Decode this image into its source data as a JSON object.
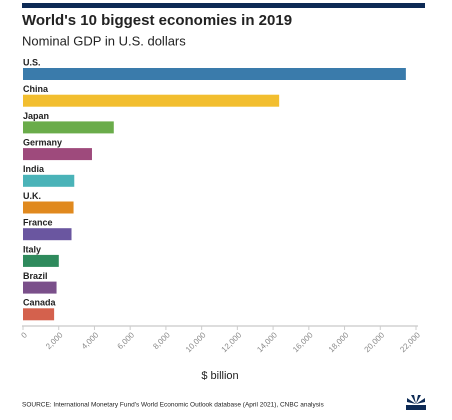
{
  "chart_data": {
    "type": "hbar",
    "title": "World's 10 biggest economies in 2019",
    "subtitle": "Nominal GDP in U.S. dollars",
    "x_label": "$ billion",
    "source": "SOURCE: International Monetary Fund's World Economic Outlook database (April 2021), CNBC analysis",
    "categories": [
      "U.S.",
      "China",
      "Japan",
      "Germany",
      "India",
      "U.K.",
      "France",
      "Italy",
      "Brazil",
      "Canada"
    ],
    "values": [
      21433,
      14340,
      5082,
      3861,
      2870,
      2830,
      2716,
      2004,
      1878,
      1742
    ],
    "colors": [
      "#3a7bab",
      "#f2be2f",
      "#6aac4a",
      "#9e4a7c",
      "#4ab3b8",
      "#e0891e",
      "#6a56a0",
      "#2e8a5c",
      "#7a4f8a",
      "#d4614d"
    ],
    "xlim": [
      0,
      22000
    ],
    "xticks": [
      0,
      {
        "value": 2000,
        "label": "2,000"
      },
      {
        "value": 4000,
        "label": "4,000"
      },
      {
        "value": 6000,
        "label": "6,000"
      },
      {
        "value": 8000,
        "label": "8,000"
      },
      {
        "value": 10000,
        "label": "10,000"
      },
      {
        "value": 12000,
        "label": "12,000"
      },
      {
        "value": 14000,
        "label": "14,000"
      },
      {
        "value": 16000,
        "label": "16,000"
      },
      {
        "value": 18000,
        "label": "18,000"
      },
      {
        "value": 20000,
        "label": "20,000"
      },
      {
        "value": 22000,
        "label": "22,000"
      }
    ]
  }
}
